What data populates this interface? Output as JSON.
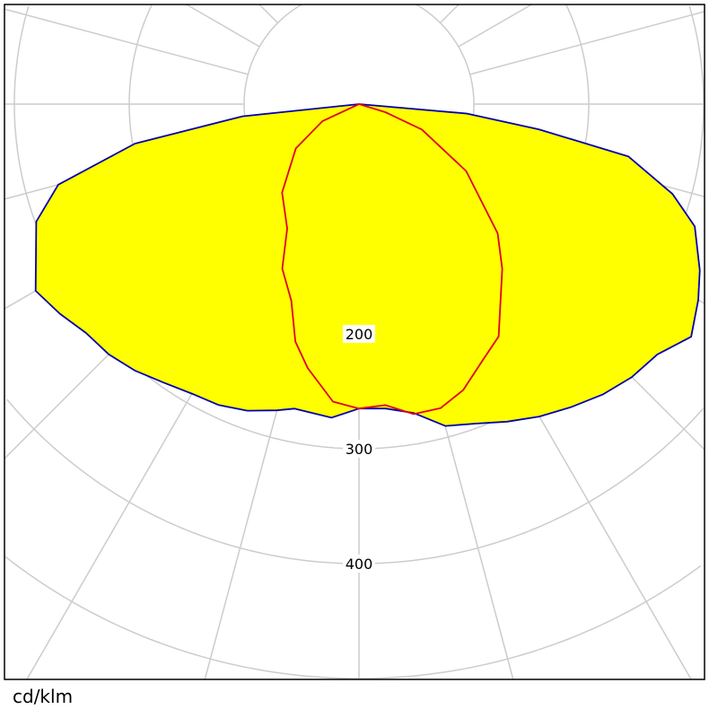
{
  "chart_data": {
    "type": "polar",
    "unit_label": "cd/klm",
    "radial_ticks": [
      100,
      200,
      300,
      400,
      500,
      600
    ],
    "radial_tick_labels": [
      "200",
      "300",
      "400"
    ],
    "angle_step_deg": 15,
    "grid": true,
    "colors": {
      "fill": "#ffff00",
      "series_1": "#0000b0",
      "series_2": "#e00020",
      "grid": "#cccccc"
    },
    "series": [
      {
        "fill": true,
        "points": [
          [
            -90,
            0
          ],
          [
            -84,
            102
          ],
          [
            -80,
            198
          ],
          [
            -75,
            271
          ],
          [
            -70,
            299
          ],
          [
            -60,
            325
          ],
          [
            -55,
            318
          ],
          [
            -50,
            310
          ],
          [
            -45,
            308
          ],
          [
            -40,
            303
          ],
          [
            -35,
            296
          ],
          [
            -30,
            291
          ],
          [
            -25,
            289
          ],
          [
            -20,
            284
          ],
          [
            -15,
            276
          ],
          [
            -12,
            271
          ],
          [
            -5,
            274
          ],
          [
            0,
            265
          ],
          [
            5,
            266
          ],
          [
            10,
            273
          ],
          [
            15,
            290
          ],
          [
            20,
            296
          ],
          [
            25,
            305
          ],
          [
            30,
            314
          ],
          [
            35,
            322
          ],
          [
            40,
            330
          ],
          [
            45,
            336
          ],
          [
            50,
            339
          ],
          [
            55,
            353
          ],
          [
            60,
            341
          ],
          [
            64,
            330
          ],
          [
            70,
            311
          ],
          [
            74,
            284
          ],
          [
            79,
            239
          ],
          [
            82,
            158
          ],
          [
            85,
            94
          ],
          [
            90,
            0
          ]
        ]
      },
      {
        "fill": false,
        "points": [
          [
            -90,
            0
          ],
          [
            -65,
            35
          ],
          [
            -55,
            67
          ],
          [
            -41,
            102
          ],
          [
            -30,
            125
          ],
          [
            -25,
            158
          ],
          [
            -19,
            181
          ],
          [
            -15,
            214
          ],
          [
            -11,
            234
          ],
          [
            -5,
            260
          ],
          [
            0,
            265
          ],
          [
            5,
            263
          ],
          [
            10,
            274
          ],
          [
            15,
            274
          ],
          [
            20,
            265
          ],
          [
            26,
            247
          ],
          [
            31,
            236
          ],
          [
            41,
            190
          ],
          [
            47,
            165
          ],
          [
            58,
            110
          ],
          [
            68,
            59
          ],
          [
            73,
            24
          ],
          [
            90,
            0
          ]
        ]
      }
    ]
  }
}
